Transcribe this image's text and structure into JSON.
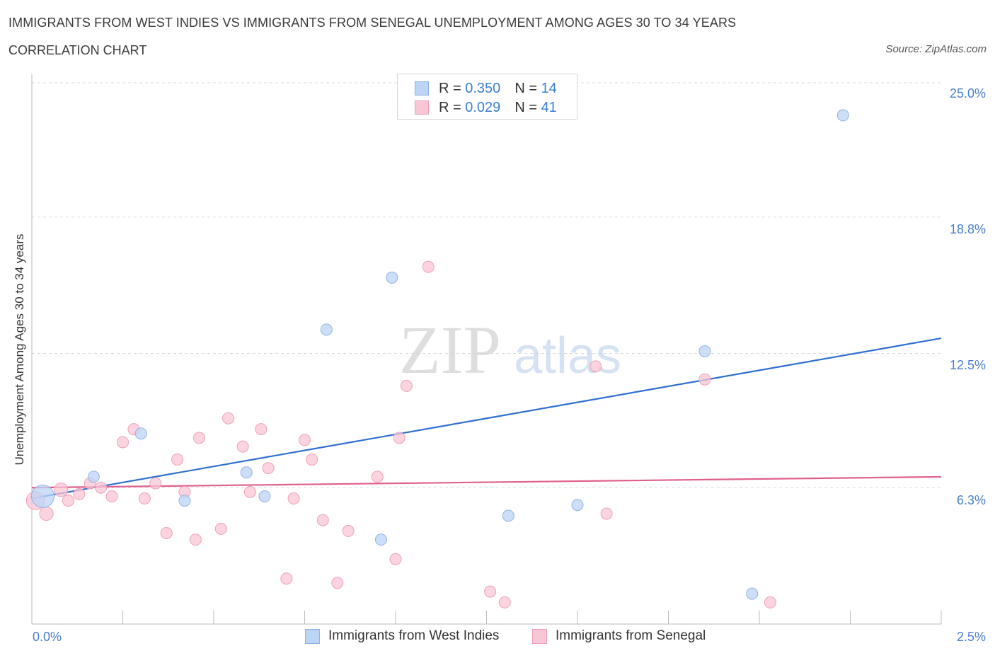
{
  "title": "IMMIGRANTS FROM WEST INDIES VS IMMIGRANTS FROM SENEGAL UNEMPLOYMENT AMONG AGES 30 TO 34 YEARS",
  "subtitle": "CORRELATION CHART",
  "source": "Source: ZipAtlas.com",
  "watermark": {
    "zip": "ZIP",
    "atlas": "atlas"
  },
  "legend_top": {
    "rows": [
      {
        "r_label": "R =",
        "r_value": "0.350",
        "n_label": "N =",
        "n_value": "14"
      },
      {
        "r_label": "R =",
        "r_value": "0.029",
        "n_label": "N =",
        "n_value": "41"
      }
    ]
  },
  "colors": {
    "blue_fill": "#bcd4f5",
    "blue_stroke": "#8fb3e6",
    "blue_line": "#2f6fd0",
    "pink_fill": "#f9c6d6",
    "pink_stroke": "#eea0b8",
    "pink_line": "#e0608f",
    "tick_text": "#4a7fd0",
    "grid": "#d9d9d9"
  },
  "chart_data": {
    "type": "scatter",
    "title": "IMMIGRANTS FROM WEST INDIES VS IMMIGRANTS FROM SENEGAL UNEMPLOYMENT AMONG AGES 30 TO 34 YEARS",
    "subtitle": "CORRELATION CHART",
    "xlabel": "",
    "ylabel": "Unemployment Among Ages 30 to 34 years",
    "xlim": [
      0,
      2.5
    ],
    "ylim": [
      0,
      25.0
    ],
    "x_tick_labels": [
      "0.0%",
      "2.5%"
    ],
    "y_ticks": [
      6.3,
      12.5,
      18.8,
      25.0
    ],
    "y_tick_labels": [
      "6.3%",
      "12.5%",
      "18.8%",
      "25.0%"
    ],
    "grid": true,
    "legend_position": "bottom",
    "series": [
      {
        "name": "Immigrants from West Indies",
        "color": "#bcd4f5",
        "r": 0.35,
        "n": 14,
        "trend": [
          [
            0.0,
            5.8
          ],
          [
            2.5,
            13.2
          ]
        ],
        "points": [
          [
            0.03,
            5.9,
            2.0
          ],
          [
            0.17,
            6.8,
            1
          ],
          [
            0.3,
            8.8,
            1
          ],
          [
            0.42,
            5.7,
            1
          ],
          [
            0.59,
            7.0,
            1
          ],
          [
            0.64,
            5.9,
            1
          ],
          [
            0.81,
            13.6,
            1
          ],
          [
            0.96,
            3.9,
            1
          ],
          [
            0.99,
            16.0,
            1
          ],
          [
            1.31,
            5.0,
            1
          ],
          [
            1.5,
            5.5,
            1
          ],
          [
            1.85,
            12.6,
            1
          ],
          [
            1.98,
            1.4,
            1
          ],
          [
            2.23,
            23.5,
            1
          ]
        ]
      },
      {
        "name": "Immigrants from Senegal",
        "color": "#f9c6d6",
        "r": 0.029,
        "n": 41,
        "trend": [
          [
            0.0,
            6.3
          ],
          [
            2.5,
            6.8
          ]
        ],
        "points": [
          [
            0.01,
            5.7,
            1.6
          ],
          [
            0.04,
            5.1,
            1.2
          ],
          [
            0.08,
            6.2,
            1.2
          ],
          [
            0.1,
            5.7,
            1
          ],
          [
            0.13,
            6.0,
            1
          ],
          [
            0.16,
            6.5,
            1
          ],
          [
            0.19,
            6.3,
            1
          ],
          [
            0.22,
            5.9,
            1
          ],
          [
            0.25,
            8.4,
            1
          ],
          [
            0.28,
            9.0,
            1
          ],
          [
            0.31,
            5.8,
            1
          ],
          [
            0.34,
            6.5,
            1
          ],
          [
            0.37,
            4.2,
            1
          ],
          [
            0.4,
            7.6,
            1
          ],
          [
            0.42,
            6.1,
            1
          ],
          [
            0.46,
            8.6,
            1
          ],
          [
            0.45,
            3.9,
            1
          ],
          [
            0.52,
            4.4,
            1
          ],
          [
            0.54,
            9.5,
            1
          ],
          [
            0.58,
            8.2,
            1
          ],
          [
            0.6,
            6.1,
            1
          ],
          [
            0.63,
            9.0,
            1
          ],
          [
            0.65,
            7.2,
            1
          ],
          [
            0.7,
            2.1,
            1
          ],
          [
            0.72,
            5.8,
            1
          ],
          [
            0.75,
            8.5,
            1
          ],
          [
            0.77,
            7.6,
            1
          ],
          [
            0.8,
            4.8,
            1
          ],
          [
            0.84,
            1.9,
            1
          ],
          [
            0.87,
            4.3,
            1
          ],
          [
            0.95,
            6.8,
            1
          ],
          [
            1.0,
            3.0,
            1
          ],
          [
            1.01,
            8.6,
            1
          ],
          [
            1.03,
            11.0,
            1
          ],
          [
            1.09,
            16.5,
            1
          ],
          [
            1.26,
            1.5,
            1
          ],
          [
            1.3,
            1.0,
            1
          ],
          [
            1.55,
            11.9,
            1
          ],
          [
            1.58,
            5.1,
            1
          ],
          [
            1.85,
            11.3,
            1
          ],
          [
            2.03,
            1.0,
            1
          ]
        ]
      }
    ]
  }
}
